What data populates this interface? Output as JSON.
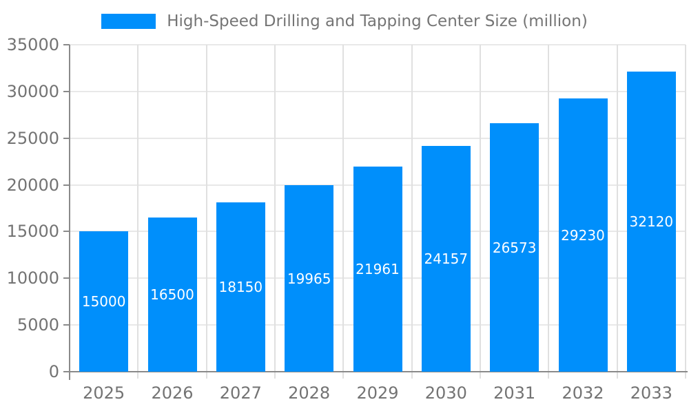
{
  "chart_data": {
    "type": "bar",
    "title": "High-Speed Drilling and Tapping Center Size (million)",
    "series_name": "High-Speed Drilling and Tapping Center Size (million)",
    "categories": [
      "2025",
      "2026",
      "2027",
      "2028",
      "2029",
      "2030",
      "2031",
      "2032",
      "2033"
    ],
    "values": [
      15000,
      16500,
      18150,
      19965,
      21961,
      24157,
      26573,
      29230,
      32120
    ],
    "value_labels": [
      "15000",
      "16500",
      "18150",
      "19965",
      "21961",
      "24157",
      "26573",
      "29230",
      "32120"
    ],
    "xlabel": "",
    "ylabel": "",
    "ylim": [
      0,
      35000
    ],
    "yticks": [
      0,
      5000,
      10000,
      15000,
      20000,
      25000,
      30000,
      35000
    ],
    "ytick_labels": [
      "0",
      "5000",
      "10000",
      "15000",
      "20000",
      "25000",
      "30000",
      "35000"
    ],
    "legend_position": "top",
    "grid": true
  },
  "colors": {
    "bar": "#008FFB",
    "value_label": "#FFFFFF",
    "axis_text": "#737373",
    "title_text": "#757575",
    "grid_horizontal": "#E8E8E8",
    "grid_vertical": "#E0E0E0",
    "axis_line": "#8A8A8A",
    "background": "#FFFFFF"
  }
}
